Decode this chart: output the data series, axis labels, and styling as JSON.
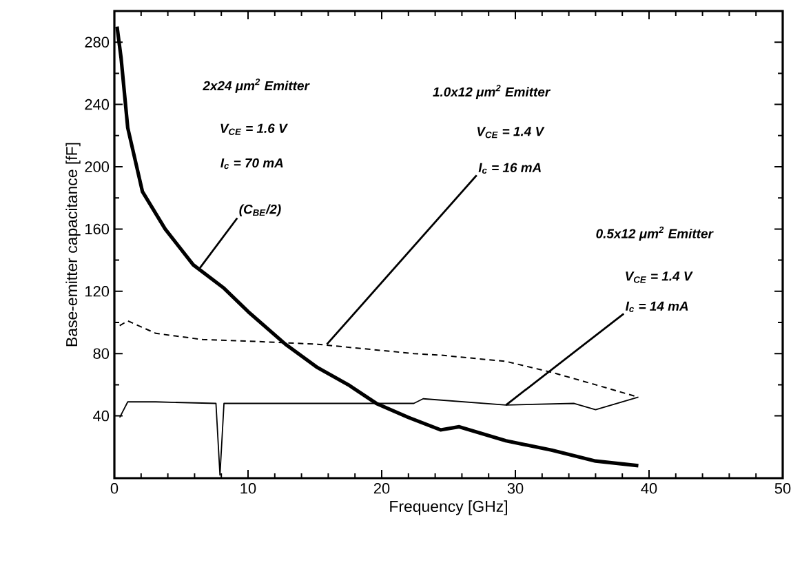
{
  "chart_data": {
    "type": "line",
    "xlabel": "Frequency [GHz]",
    "ylabel": "Base-emitter capacitance [fF]",
    "xlim": [
      0,
      50
    ],
    "xticks": [
      0,
      10,
      20,
      30,
      40,
      50
    ],
    "ylim": [
      0,
      300
    ],
    "yticks": [
      40,
      80,
      120,
      160,
      200,
      240,
      280
    ],
    "grid": false,
    "marker": "none",
    "x": [
      0.2,
      0.5,
      1,
      2.1,
      3.8,
      5.9,
      8.2,
      10,
      12.8,
      15.2,
      17.5,
      19.6,
      22,
      24.4,
      25.8,
      29.3,
      32.7,
      36,
      39.2
    ],
    "series": [
      {
        "color": "#000000",
        "line_style": "solid",
        "values": [
          290,
          270,
          225,
          184,
          160,
          137,
          122,
          107,
          86,
          71,
          60,
          48,
          39,
          31,
          33,
          24,
          18,
          11,
          8
        ]
      },
      {
        "color": "#000000",
        "line_style": "dashed",
        "x": [
          0.4,
          1,
          3.1,
          6.6,
          10,
          15.2,
          22.4,
          24.4,
          29.3,
          32.7,
          36,
          39.2
        ],
        "values": [
          98,
          101,
          93,
          89,
          88,
          86,
          80,
          79,
          75,
          68,
          60,
          52
        ]
      },
      {
        "color": "#000000",
        "line_style": "solid",
        "x": [
          0.4,
          1,
          3.1,
          7.6,
          7.9,
          8.2,
          16.8,
          19.6,
          22.4,
          23.1,
          29.3,
          34.4,
          36,
          39.2
        ],
        "values": [
          39,
          49,
          49,
          48,
          2,
          48,
          48,
          48,
          48,
          51,
          47,
          48,
          44,
          52
        ]
      }
    ],
    "annotations": [
      "2x24 μm$^{2}$ Emitter",
      "V$_{CE}$ = 1.6 V",
      "I$_{c}$ = 70 mA",
      {
        "text": "(C$_{BE}$/2)",
        "x": 6.4,
        "y": 135
      },
      "1.0x12 μm$^{2}$ Emitter",
      "V$_{CE}$ = 1.4 V",
      {
        "text": "I$_{c}$ = 16 mA",
        "x": 15.9,
        "y": 86
      },
      "0.5x12 μm$^{2}$ Emitter",
      "V$_{CE}$ = 1.4 V",
      {
        "text": "I$_{c}$ = 14 mA",
        "x": 29.3,
        "y": 47
      }
    ]
  }
}
